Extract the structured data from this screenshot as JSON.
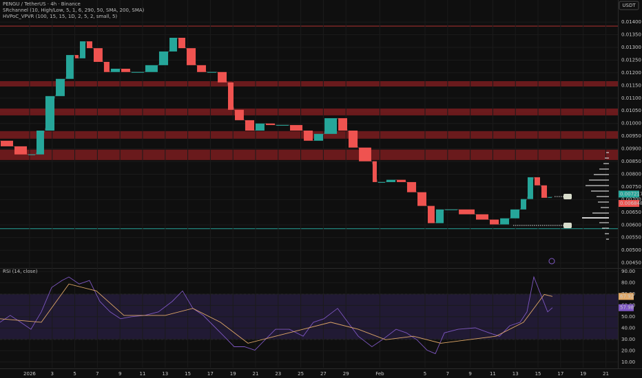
{
  "chart_data": [
    {
      "type": "candlestick",
      "title": "PENGU / TetherUS · 4h · Binance",
      "indicators": [
        "SRchannel (10, High/Low, 5, 1, 6, 290, 50, SMA, 200, SMA)",
        "HVPoC_VPVR (100, 15, 15, 1D, 2, 5, 2, small, 5)"
      ],
      "currency": "USDT",
      "up_color": "#26a69a",
      "down_color": "#ef5350",
      "xlim": [
        -2.62,
        52.07
      ],
      "ylim": [
        0.0043,
        0.01487
      ],
      "x": [
        -2.62,
        -1.4,
        -0.18,
        0.55,
        1.34,
        2.26,
        3.17,
        3.96,
        4.39,
        5.0,
        5.61,
        6.52,
        7.13,
        8.05,
        8.96,
        10.18,
        11.4,
        12.32,
        13.11,
        13.84,
        14.76,
        15.67,
        16.59,
        17.5,
        18.11,
        19.02,
        19.94,
        20.85,
        21.77,
        22.99,
        24.21,
        25.12,
        26.04,
        27.26,
        28.17,
        29.09,
        30.3,
        30.79,
        31.52,
        32.44,
        33.35,
        34.27,
        35.18,
        35.91,
        36.71,
        37.93,
        39.45,
        40.67,
        41.59,
        42.5,
        43.41,
        44.02,
        44.63,
        45.24,
        45.85,
        46.28
      ],
      "values": [
        0.00932,
        0.0091,
        0.00878,
        0.00878,
        0.00972,
        0.01108,
        0.01176,
        0.0127,
        0.01257,
        0.01324,
        0.01297,
        0.01243,
        0.01203,
        0.01216,
        0.01203,
        0.01203,
        0.0123,
        0.01284,
        0.01338,
        0.01297,
        0.0123,
        0.01203,
        0.01203,
        0.01162,
        0.01054,
        0.01013,
        0.00972,
        0.01,
        0.00994,
        0.00994,
        0.00972,
        0.00932,
        0.00959,
        0.01021,
        0.00972,
        0.00905,
        0.00851,
        0.00769,
        0.00769,
        0.00778,
        0.00769,
        0.00729,
        0.00675,
        0.00607,
        0.00661,
        0.00661,
        0.00642,
        0.00621,
        0.00602,
        0.00626,
        0.00661,
        0.00702,
        0.00788,
        0.00756,
        0.00707,
        0.0071
      ],
      "zones": [
        {
          "from": 0.01146,
          "to": 0.01167
        },
        {
          "from": 0.01032,
          "to": 0.01059
        },
        {
          "from": 0.0094,
          "to": 0.0097
        },
        {
          "from": 0.00856,
          "to": 0.00897
        }
      ],
      "zone_color": "#7a1c1f",
      "lines": [
        {
          "value": 0.01384,
          "color": "#b2322f"
        },
        {
          "value": 0.00585,
          "color": "#26a69a"
        }
      ],
      "price_labels": [
        {
          "value": 0.007217,
          "color": "#26a69a"
        },
        {
          "value": 0.006848,
          "color": "#ef5350"
        }
      ],
      "yticks": [
        {
          "value": 0.0045,
          "label": "0.00450"
        },
        {
          "value": 0.005,
          "label": "0.00500"
        },
        {
          "value": 0.0055,
          "label": "0.00550"
        },
        {
          "value": 0.006,
          "label": "0.00600"
        },
        {
          "value": 0.0065,
          "label": "0.00650"
        },
        {
          "value": 0.007,
          "label": "0.00700"
        },
        {
          "value": 0.0075,
          "label": "0.00750"
        },
        {
          "value": 0.008,
          "label": "0.00800"
        },
        {
          "value": 0.0085,
          "label": "0.00850"
        },
        {
          "value": 0.009,
          "label": "0.00900"
        },
        {
          "value": 0.0095,
          "label": "0.00950"
        },
        {
          "value": 0.01,
          "label": "0.01000"
        },
        {
          "value": 0.0105,
          "label": "0.01050"
        },
        {
          "value": 0.011,
          "label": "0.01100"
        },
        {
          "value": 0.0115,
          "label": "0.01150"
        },
        {
          "value": 0.012,
          "label": "0.01200"
        },
        {
          "value": 0.0125,
          "label": "0.01250"
        },
        {
          "value": 0.013,
          "label": "0.01300"
        },
        {
          "value": 0.0135,
          "label": "0.01350"
        },
        {
          "value": 0.014,
          "label": "0.01400"
        }
      ]
    },
    {
      "type": "line",
      "title": "RSI (14, close)",
      "xlim": [
        -2.62,
        52.07
      ],
      "ylim": [
        5,
        93
      ],
      "band": [
        30,
        70
      ],
      "band_color": "#2a1f45",
      "series": [
        {
          "color": "#7e57c2",
          "x": [
            -2.62,
            -1.71,
            -0.79,
            0.12,
            1.04,
            1.95,
            2.87,
            3.48,
            4.39,
            5.3,
            6.22,
            7.13,
            8.05,
            8.96,
            10.18,
            11.4,
            12.62,
            13.54,
            14.45,
            15.37,
            16.28,
            17.2,
            18.11,
            19.02,
            19.94,
            20.85,
            21.77,
            22.99,
            24.21,
            25.12,
            26.04,
            27.26,
            28.17,
            29.09,
            30.3,
            31.22,
            32.44,
            33.35,
            34.27,
            35.18,
            35.91,
            36.71,
            37.93,
            39.45,
            40.67,
            41.59,
            42.5,
            43.41,
            44.02,
            44.63,
            45.24,
            45.85,
            46.28
          ],
          "values": [
            45.1,
            51.2,
            45.1,
            38.9,
            54.3,
            75.8,
            82.0,
            85.1,
            78.9,
            82.0,
            63.5,
            54.3,
            48.2,
            50.0,
            51.2,
            54.3,
            63.5,
            72.8,
            57.4,
            51.2,
            42.0,
            32.8,
            23.5,
            23.5,
            20.5,
            29.7,
            38.9,
            38.9,
            32.8,
            45.1,
            48.2,
            57.4,
            45.1,
            32.8,
            23.5,
            29.7,
            38.9,
            35.8,
            29.7,
            20.5,
            17.4,
            35.8,
            38.9,
            40.2,
            35.8,
            32.8,
            42.0,
            45.1,
            54.3,
            85.1,
            69.7,
            54.3,
            57.98
          ]
        },
        {
          "color": "#e0a868",
          "x": [
            -2.62,
            1.04,
            3.48,
            5.91,
            8.35,
            12.01,
            14.45,
            16.89,
            19.33,
            21.77,
            24.21,
            26.65,
            29.09,
            31.52,
            33.96,
            36.4,
            38.84,
            41.28,
            43.72,
            45.55,
            46.28
          ],
          "values": [
            48.2,
            45.1,
            78.9,
            72.8,
            51.2,
            51.2,
            57.4,
            45.1,
            26.6,
            32.8,
            38.9,
            45.1,
            38.9,
            29.7,
            32.8,
            26.6,
            29.7,
            32.8,
            45.1,
            69.7,
            67.92
          ]
        }
      ],
      "yticks": [
        {
          "value": 10,
          "label": "10.00"
        },
        {
          "value": 20,
          "label": "20.00"
        },
        {
          "value": 30,
          "label": "30.00"
        },
        {
          "value": 40,
          "label": "40.00"
        },
        {
          "value": 50,
          "label": "50.00"
        },
        {
          "value": 60,
          "label": "60.00"
        },
        {
          "value": 70,
          "label": "70.00"
        },
        {
          "value": 80,
          "label": "80.00"
        },
        {
          "value": 90,
          "label": "90.00"
        }
      ],
      "xticks": [
        {
          "value": 0,
          "label": "2026"
        },
        {
          "value": 2,
          "label": "3"
        },
        {
          "value": 4,
          "label": "5"
        },
        {
          "value": 6,
          "label": "7"
        },
        {
          "value": 8,
          "label": "9"
        },
        {
          "value": 10,
          "label": "11"
        },
        {
          "value": 12,
          "label": "13"
        },
        {
          "value": 14,
          "label": "15"
        },
        {
          "value": 16,
          "label": "17"
        },
        {
          "value": 18,
          "label": "19"
        },
        {
          "value": 20,
          "label": "21"
        },
        {
          "value": 22,
          "label": "23"
        },
        {
          "value": 24,
          "label": "25"
        },
        {
          "value": 26,
          "label": "27"
        },
        {
          "value": 28,
          "label": "29"
        },
        {
          "value": 31,
          "label": "Feb"
        },
        {
          "value": 35,
          "label": "5"
        },
        {
          "value": 37,
          "label": "7"
        },
        {
          "value": 39,
          "label": "9"
        },
        {
          "value": 41,
          "label": "11"
        },
        {
          "value": 43,
          "label": "13"
        },
        {
          "value": 45,
          "label": "15"
        },
        {
          "value": 47,
          "label": "17"
        },
        {
          "value": 49,
          "label": "19"
        },
        {
          "value": 51,
          "label": "21"
        }
      ]
    }
  ]
}
